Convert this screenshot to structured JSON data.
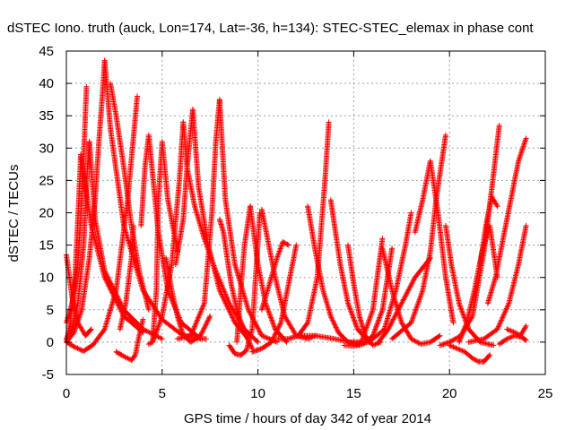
{
  "chart_data": {
    "type": "line",
    "title": "dSTEC Iono. truth (auck, Lon=174, Lat=-36, h=134): STEC-STEC_elemax in phase cont",
    "xlabel": "GPS time / hours of day 342 of year 2014",
    "ylabel": "dSTEC  / TECUs",
    "xlim": [
      0,
      25
    ],
    "ylim": [
      -5,
      45
    ],
    "xticks": [
      "0",
      "5",
      "10",
      "15",
      "20",
      "25"
    ],
    "yticks": [
      "-5",
      "0",
      "5",
      "10",
      "15",
      "20",
      "25",
      "30",
      "35",
      "40",
      "45"
    ],
    "grid": true,
    "marker": "+",
    "series_color": "#ff0000",
    "series": [
      {
        "x": [
          0.0,
          0.4,
          0.8,
          1.2,
          1.5,
          1.7,
          1.9,
          2.0
        ],
        "y": [
          0,
          1.5,
          5,
          13,
          22,
          31,
          39,
          43.5
        ]
      },
      {
        "x": [
          2.0,
          2.3,
          3.0,
          4.0,
          5.0,
          6.0,
          6.8,
          7.3
        ],
        "y": [
          43.5,
          33,
          18,
          8,
          3.5,
          1.2,
          0.6,
          0.5
        ]
      },
      {
        "x": [
          0.0,
          0.3,
          0.6,
          0.9,
          1.1,
          1.2
        ],
        "y": [
          0.5,
          2,
          6,
          15,
          27,
          31
        ]
      },
      {
        "x": [
          1.2,
          1.5,
          2.0,
          3.0,
          4.0,
          5.0
        ],
        "y": [
          31,
          19,
          11,
          5,
          2,
          0.5
        ]
      },
      {
        "x": [
          0.0,
          0.2,
          0.45,
          0.65,
          0.75
        ],
        "y": [
          0,
          3,
          10,
          22,
          29
        ]
      },
      {
        "x": [
          0.75,
          1.3,
          2.0,
          3.0,
          4.0
        ],
        "y": [
          29,
          18,
          10,
          4,
          1.5
        ]
      },
      {
        "x": [
          0.0,
          0.3,
          0.6,
          0.8,
          0.95,
          1.05
        ],
        "y": [
          3,
          6,
          12,
          22,
          32,
          39.5
        ]
      },
      {
        "x": [
          0.0,
          0.3,
          0.6,
          1.0,
          1.3
        ],
        "y": [
          13.5,
          7,
          3,
          1,
          2
        ]
      },
      {
        "x": [
          0.0,
          0.4,
          0.9,
          1.4,
          2.0,
          2.6,
          3.2,
          3.7
        ],
        "y": [
          0,
          -0.7,
          -1.4,
          -0.4,
          2,
          8,
          22,
          38
        ]
      },
      {
        "x": [
          2.3,
          2.6,
          3.0,
          3.4,
          3.8,
          4.3
        ],
        "y": [
          40,
          35,
          27,
          18,
          11,
          5
        ]
      },
      {
        "x": [
          2.6,
          3.0,
          3.4,
          3.6,
          3.8,
          4.0
        ],
        "y": [
          -1.5,
          -2.2,
          -2.8,
          -2,
          1,
          3.5
        ]
      },
      {
        "x": [
          2.8,
          3.1,
          3.4,
          3.5
        ],
        "y": [
          2,
          6,
          13,
          18
        ]
      },
      {
        "x": [
          3.9,
          4.1,
          4.3,
          4.5,
          4.8,
          5.3,
          6.0,
          7.0
        ],
        "y": [
          18,
          27,
          32,
          26,
          17,
          8,
          3,
          0.5
        ]
      },
      {
        "x": [
          4.3,
          4.5,
          4.7,
          4.8,
          5.0,
          5.3,
          5.8
        ],
        "y": [
          -0.3,
          0,
          8,
          22,
          31,
          22,
          14
        ]
      },
      {
        "x": [
          4.5,
          5.0,
          5.5,
          5.9,
          6.1
        ],
        "y": [
          0,
          4,
          12,
          25,
          34
        ]
      },
      {
        "x": [
          6.1,
          6.3,
          6.7,
          7.2,
          7.8,
          8.5,
          9.3,
          10.0
        ],
        "y": [
          34,
          27,
          21,
          16,
          11,
          6,
          2,
          0
        ]
      },
      {
        "x": [
          5.7,
          6.1,
          6.3,
          6.5,
          6.6
        ],
        "y": [
          12,
          19,
          27,
          33,
          36
        ]
      },
      {
        "x": [
          6.6,
          6.9,
          7.4,
          8.0,
          8.8,
          9.5
        ],
        "y": [
          36,
          24,
          15,
          8,
          3,
          0.5
        ]
      },
      {
        "x": [
          5.8,
          6.5,
          7.2,
          7.6,
          7.8,
          8.0
        ],
        "y": [
          0.5,
          1,
          6,
          20,
          31,
          37.5
        ]
      },
      {
        "x": [
          8.0,
          8.3,
          8.8,
          9.5,
          10.2,
          11.0
        ],
        "y": [
          37.5,
          22,
          12,
          5,
          1,
          0
        ]
      },
      {
        "x": [
          5.2,
          5.5,
          5.8,
          6.1,
          6.5,
          7.0,
          7.5
        ],
        "y": [
          13,
          8,
          4,
          1,
          0,
          1,
          4
        ]
      },
      {
        "x": [
          8.0,
          8.2,
          8.4,
          8.6,
          8.9,
          9.3,
          9.7
        ],
        "y": [
          19,
          17,
          13,
          9,
          5,
          1.5,
          -1
        ]
      },
      {
        "x": [
          8.5,
          8.8,
          9.1,
          9.4,
          9.7,
          10.1
        ],
        "y": [
          -0.5,
          -1.8,
          -2,
          -1.3,
          2,
          20
        ]
      },
      {
        "x": [
          8.9,
          9.1,
          9.3,
          9.6
        ],
        "y": [
          0,
          8,
          15,
          21
        ]
      },
      {
        "x": [
          9.6,
          10.0,
          10.4,
          10.9,
          11.5
        ],
        "y": [
          21,
          12,
          6,
          2,
          0
        ]
      },
      {
        "x": [
          10.2,
          10.5,
          10.9,
          11.4,
          12.0,
          12.6,
          13.0
        ],
        "y": [
          20.5,
          16,
          10,
          4,
          1,
          0.5,
          1
        ]
      },
      {
        "x": [
          9.7,
          10.2,
          10.7,
          11.2,
          11.6,
          12.0
        ],
        "y": [
          -1.5,
          -1,
          0,
          3,
          9,
          15
        ]
      },
      {
        "x": [
          10.2,
          10.6,
          11.0,
          11.3,
          11.6
        ],
        "y": [
          5,
          9,
          13,
          15.5,
          15
        ]
      },
      {
        "x": [
          11.0,
          11.6,
          12.1,
          12.6,
          13.1,
          13.5,
          13.7
        ],
        "y": [
          0.5,
          0.5,
          1,
          3,
          10,
          25,
          34
        ]
      },
      {
        "x": [
          12.6,
          13.0,
          13.4,
          13.8,
          14.2,
          14.7,
          15.3
        ],
        "y": [
          21,
          14,
          8,
          4,
          1.5,
          0,
          -0.5
        ]
      },
      {
        "x": [
          13.8,
          14.0,
          14.3,
          14.7,
          15.2,
          15.8
        ],
        "y": [
          22,
          18,
          12,
          6,
          2,
          0
        ]
      },
      {
        "x": [
          12.0,
          13.0,
          14.0,
          14.8,
          15.4,
          16.0,
          16.5
        ],
        "y": [
          1,
          1,
          0.5,
          0,
          0,
          5,
          16
        ]
      },
      {
        "x": [
          14.7,
          15.0,
          15.3,
          15.6,
          16.0,
          16.4
        ],
        "y": [
          15,
          9,
          4,
          1,
          -0.5,
          0
        ]
      },
      {
        "x": [
          14.5,
          15.0,
          15.5,
          16.0,
          16.5,
          17.0
        ],
        "y": [
          -0.5,
          -0.6,
          -0.3,
          1,
          5,
          14.5
        ]
      },
      {
        "x": [
          16.5,
          17.0,
          17.5,
          18.0,
          18.5,
          19.0,
          19.5
        ],
        "y": [
          14.5,
          8,
          3,
          0.5,
          -0.3,
          0,
          1
        ]
      },
      {
        "x": [
          16.3,
          16.8,
          17.5,
          18.2,
          19.0
        ],
        "y": [
          0,
          2,
          6,
          10,
          13
        ]
      },
      {
        "x": [
          15.0,
          15.8,
          16.6,
          17.2,
          17.7,
          18.0
        ],
        "y": [
          -0.3,
          0,
          2,
          8,
          15,
          20
        ]
      },
      {
        "x": [
          17.0,
          18.0,
          18.6,
          19.0,
          19.3,
          19.6,
          19.8
        ],
        "y": [
          0.5,
          3,
          8,
          14,
          22,
          28,
          32
        ]
      },
      {
        "x": [
          19.8,
          20.1,
          20.5,
          21.0,
          21.6,
          22.3
        ],
        "y": [
          18,
          12,
          6,
          2,
          0,
          -0.5
        ]
      },
      {
        "x": [
          18.2,
          18.6,
          19.0,
          19.4,
          19.8,
          20.2
        ],
        "y": [
          17,
          22,
          28,
          20,
          10,
          3
        ]
      },
      {
        "x": [
          19.5,
          20.0,
          20.6,
          21.2,
          21.8,
          22.3,
          22.6
        ],
        "y": [
          -0.5,
          0,
          1,
          4,
          14,
          26,
          33.5
        ]
      },
      {
        "x": [
          20.0,
          20.4,
          20.8,
          21.2,
          21.5,
          21.8,
          22.1
        ],
        "y": [
          -0.5,
          -1,
          -1.5,
          -2.5,
          -3,
          -3,
          -2
        ]
      },
      {
        "x": [
          20.5,
          20.9,
          21.3,
          21.7,
          22.1,
          22.5
        ],
        "y": [
          0,
          3,
          8,
          14,
          18,
          10
        ]
      },
      {
        "x": [
          21.6,
          21.9,
          22.2,
          22.5
        ],
        "y": [
          12,
          18,
          22.5,
          21
        ]
      },
      {
        "x": [
          22.0,
          22.4,
          22.8,
          23.2,
          23.6,
          24.0
        ],
        "y": [
          6,
          10,
          16,
          22,
          28,
          31.5
        ]
      },
      {
        "x": [
          21.0,
          21.8,
          22.5,
          23.1,
          23.6,
          24.0
        ],
        "y": [
          0,
          0.5,
          2,
          6,
          12,
          18
        ]
      },
      {
        "x": [
          22.6,
          23.0,
          23.4,
          23.8,
          24.0
        ],
        "y": [
          -0.3,
          0.5,
          1,
          0.7,
          0.3
        ]
      },
      {
        "x": [
          23.0,
          23.4,
          23.7,
          24.0
        ],
        "y": [
          2,
          1.5,
          1,
          2.5
        ]
      }
    ]
  }
}
